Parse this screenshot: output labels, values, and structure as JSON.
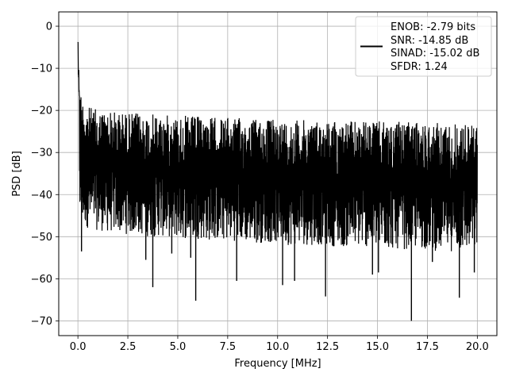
{
  "chart_data": {
    "type": "line",
    "title": "",
    "xlabel": "Frequency [MHz]",
    "ylabel": "PSD [dB]",
    "xlim": [
      -0.96,
      20.98
    ],
    "ylim": [
      -73.5,
      3.4
    ],
    "xticks": [
      0.0,
      2.5,
      5.0,
      7.5,
      10.0,
      12.5,
      15.0,
      17.5,
      20.0
    ],
    "xtick_labels": [
      "0.0",
      "2.5",
      "5.0",
      "7.5",
      "10.0",
      "12.5",
      "15.0",
      "17.5",
      "20.0"
    ],
    "yticks": [
      0,
      -10,
      -20,
      -30,
      -40,
      -50,
      -60,
      -70
    ],
    "ytick_labels": [
      "0",
      "−10",
      "−20",
      "−30",
      "−40",
      "−50",
      "−60",
      "−70"
    ],
    "grid": true,
    "legend_position": "top-right",
    "series": [
      {
        "color": "#000000",
        "legend_lines": [
          "ENOB: -2.79 bits",
          "SNR: -14.85 dB",
          "SINAD: -15.02 dB",
          "SFDR: 1.24"
        ],
        "upper_envelope": {
          "x": [
            0.0,
            0.02,
            0.05,
            0.1,
            0.2,
            0.35,
            0.5,
            0.8,
            1.0,
            1.5,
            2.0,
            2.5,
            3.0,
            3.5,
            4.0,
            4.5,
            5.0,
            5.5,
            6.0,
            6.5,
            7.0,
            7.5,
            8.0,
            8.5,
            9.0,
            9.5,
            10.0,
            10.5,
            11.0,
            11.5,
            12.0,
            12.5,
            13.0,
            13.5,
            14.0,
            14.5,
            15.0,
            15.5,
            16.0,
            16.5,
            17.0,
            17.5,
            18.0,
            18.5,
            19.0,
            19.5,
            20.0
          ],
          "y": [
            0.0,
            -5.0,
            -10.0,
            -14.0,
            -16.5,
            -18.0,
            -19.0,
            -19.5,
            -19.8,
            -20.0,
            -20.3,
            -20.5,
            -20.6,
            -20.8,
            -21.0,
            -21.1,
            -21.2,
            -21.3,
            -21.4,
            -21.5,
            -21.6,
            -21.7,
            -21.8,
            -21.9,
            -22.0,
            -22.0,
            -22.1,
            -22.2,
            -22.2,
            -22.3,
            -22.3,
            -22.4,
            -22.4,
            -22.5,
            -22.5,
            -22.6,
            -22.6,
            -22.7,
            -22.7,
            -22.8,
            -22.8,
            -22.9,
            -22.9,
            -23.0,
            -23.0,
            -23.1,
            -23.2
          ]
        },
        "lower_envelope": {
          "x": [
            0.0,
            0.1,
            0.2,
            0.5,
            1.0,
            1.5,
            2.0,
            2.5,
            3.0,
            3.5,
            4.0,
            4.5,
            5.0,
            5.5,
            6.0,
            6.5,
            7.0,
            7.5,
            8.0,
            8.5,
            9.0,
            9.5,
            10.0,
            10.5,
            11.0,
            11.5,
            12.0,
            12.5,
            13.0,
            13.5,
            14.0,
            14.5,
            15.0,
            15.5,
            16.0,
            16.5,
            17.0,
            17.5,
            18.0,
            18.5,
            19.0,
            19.5,
            20.0
          ],
          "y": [
            -8.0,
            -45.0,
            -47.0,
            -48.0,
            -48.5,
            -49.0,
            -49.0,
            -49.5,
            -49.5,
            -50.0,
            -50.0,
            -50.0,
            -50.5,
            -50.5,
            -50.5,
            -51.0,
            -51.0,
            -51.0,
            -51.0,
            -51.5,
            -51.5,
            -51.5,
            -51.5,
            -52.0,
            -52.0,
            -52.0,
            -52.0,
            -52.0,
            -52.5,
            -52.5,
            -52.5,
            -52.5,
            -53.0,
            -53.0,
            -53.0,
            -53.0,
            -53.0,
            -53.0,
            -53.5,
            -53.5,
            -53.5,
            -53.5,
            -53.5
          ]
        },
        "deep_dips": [
          {
            "x": 0.18,
            "y": -53.5
          },
          {
            "x": 3.4,
            "y": -55.5
          },
          {
            "x": 3.75,
            "y": -62.0
          },
          {
            "x": 4.7,
            "y": -54.0
          },
          {
            "x": 5.65,
            "y": -55.0
          },
          {
            "x": 5.9,
            "y": -65.2
          },
          {
            "x": 7.95,
            "y": -60.5
          },
          {
            "x": 10.25,
            "y": -61.5
          },
          {
            "x": 10.85,
            "y": -60.5
          },
          {
            "x": 12.4,
            "y": -64.2
          },
          {
            "x": 14.75,
            "y": -59.0
          },
          {
            "x": 15.05,
            "y": -58.5
          },
          {
            "x": 16.7,
            "y": -70.0
          },
          {
            "x": 17.75,
            "y": -56.0
          },
          {
            "x": 19.1,
            "y": -64.5
          },
          {
            "x": 19.85,
            "y": -58.5
          }
        ]
      }
    ]
  }
}
